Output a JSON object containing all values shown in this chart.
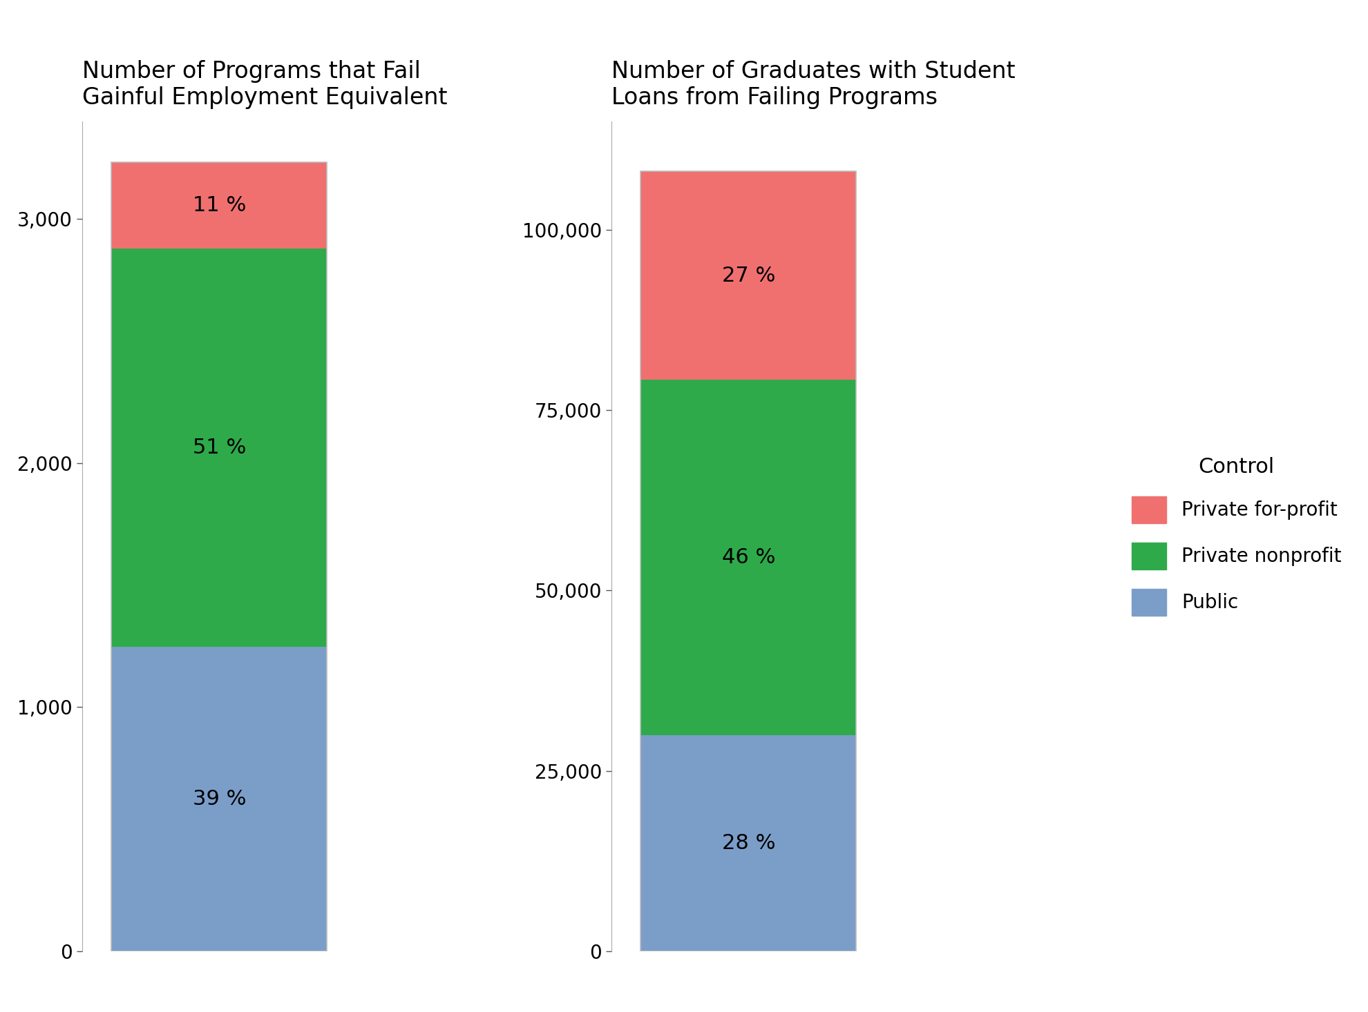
{
  "chart1_title": "Number of Programs that Fail\nGainful Employment Equivalent",
  "chart2_title": "Number of Graduates with Student\nLoans from Failing Programs",
  "legend_title": "Control",
  "categories": [
    "Public",
    "Private nonprofit",
    "Private for-profit"
  ],
  "colors": [
    "#7b9ec9",
    "#2eaa4a",
    "#f07070"
  ],
  "chart1_values": [
    1248,
    1632,
    352
  ],
  "chart1_pcts": [
    "39 %",
    "51 %",
    "11 %"
  ],
  "chart1_ylim": [
    0,
    3400
  ],
  "chart1_yticks": [
    0,
    1000,
    2000,
    3000
  ],
  "chart2_values": [
    29960,
    49220,
    28890
  ],
  "chart2_pcts": [
    "28 %",
    "46 %",
    "27 %"
  ],
  "chart2_ylim": [
    0,
    115000
  ],
  "chart2_yticks": [
    0,
    25000,
    50000,
    75000,
    100000
  ],
  "bar_width": 0.55,
  "background_color": "#ffffff",
  "title_fontsize": 24,
  "tick_fontsize": 20,
  "pct_fontsize": 22,
  "legend_fontsize": 20,
  "legend_title_fontsize": 22
}
